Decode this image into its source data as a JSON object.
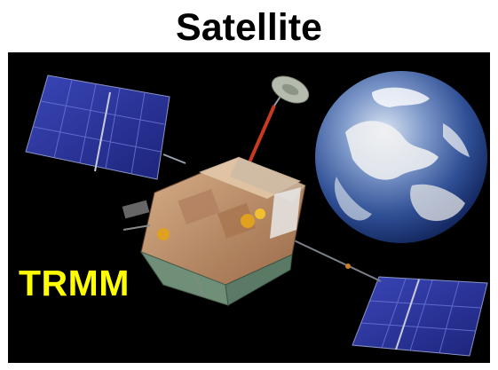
{
  "page": {
    "title": "Satellite",
    "caption": "TRMM",
    "caption_color": "#ffff00",
    "background_color": "#000000"
  },
  "illustration": {
    "subject": "satellite-with-solar-panels",
    "backdrop": "earth-globe"
  }
}
